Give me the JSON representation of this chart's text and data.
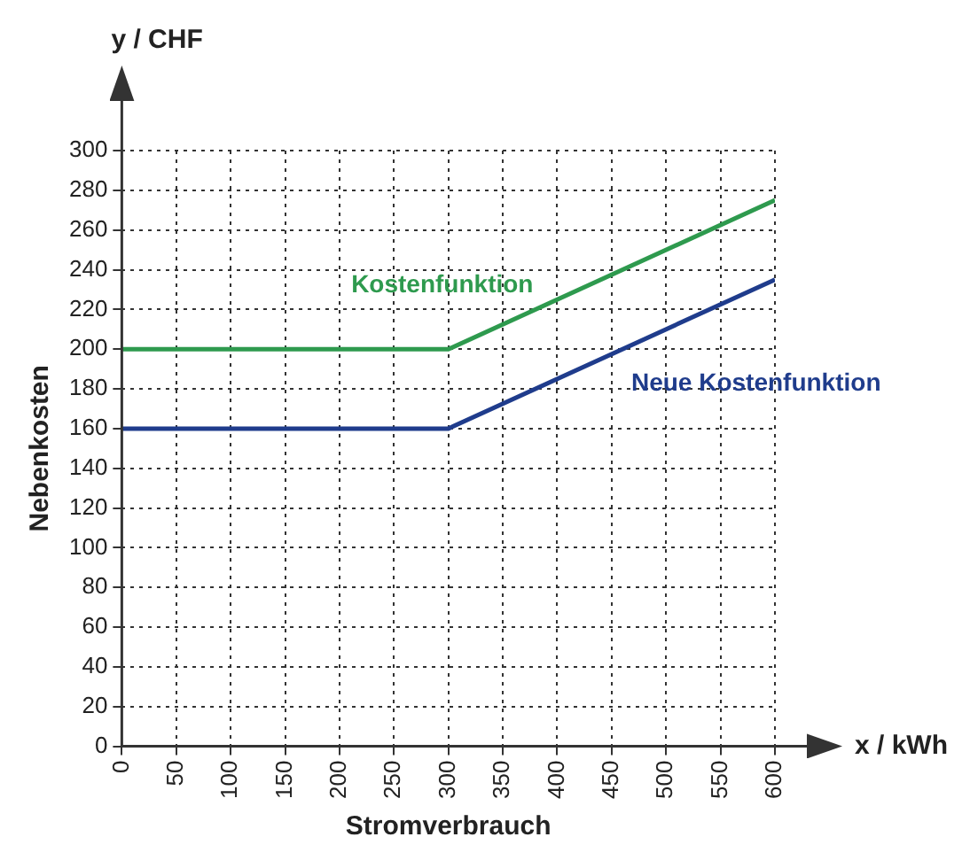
{
  "chart_data": {
    "type": "line",
    "xlabel": "Stromverbrauch",
    "ylabel": "Nebenkosten",
    "annotations": [
      "y / CHF",
      "x / kWh"
    ],
    "xlim": [
      0,
      600
    ],
    "xticks": [
      0,
      50,
      100,
      150,
      200,
      250,
      300,
      350,
      400,
      450,
      500,
      550,
      600
    ],
    "ylim": [
      0,
      300
    ],
    "yticks": [
      0,
      20,
      40,
      60,
      80,
      100,
      120,
      140,
      160,
      180,
      200,
      220,
      240,
      260,
      280,
      300
    ],
    "grid": true,
    "legend": false,
    "marker": "none",
    "line_style": "solid",
    "series": [
      {
        "name": "Kostenfunktion",
        "color": "#2e9a4e",
        "x": [
          0,
          300,
          600
        ],
        "values": [
          200,
          200,
          275
        ]
      },
      {
        "name": "Neue Kostenfunktion",
        "color": "#1f3c8c",
        "x": [
          0,
          300,
          600
        ],
        "values": [
          160,
          160,
          235
        ]
      }
    ]
  }
}
